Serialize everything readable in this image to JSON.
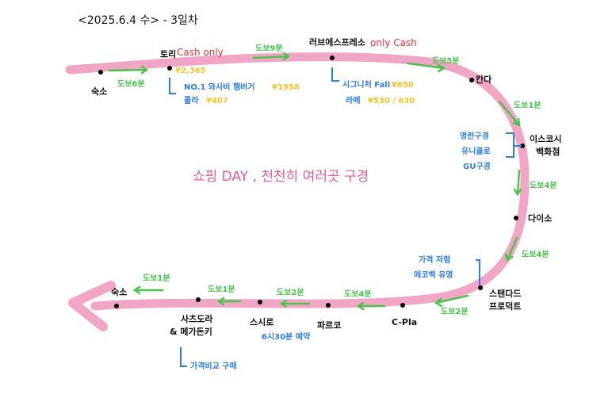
{
  "title": "<2025.6.4 수> - 3일차",
  "theme": "쇼핑 DAY , 천천히 여러곳 구경",
  "colors": {
    "route": "#f0a6c4",
    "walk": "#4cc24f",
    "note": "#2f7de1",
    "price": "#f4c22b",
    "warn": "#e8313c"
  },
  "stops": {
    "s1": "숙소",
    "s2": "토리",
    "s3": "러브에스프레소",
    "s4": "칸다",
    "s5a": "이스코시",
    "s5b": "백화점",
    "s6": "다이소",
    "s7a": "스탠다드",
    "s7b": "프로덕트",
    "s8": "C-Pla",
    "s9": "파르코",
    "s10": "스시로",
    "s11a": "사츠도라",
    "s11b": "& 메가돈키",
    "s12": "숙소"
  },
  "walks": [
    "도보6분",
    "도보9분",
    "도보5분",
    "도보1분",
    "도보4분",
    "도보4분",
    "도보2분",
    "도보4분",
    "도보2분",
    "도보1분",
    "도보1분"
  ],
  "notes": {
    "tori_cash": "Cash only",
    "tori_price": "¥2,365",
    "tori_item1": "NO.1 와사비 햄버거",
    "tori_item1_price": "¥1958",
    "tori_item2": "콜라",
    "tori_item2_price": "¥407",
    "love_cash": "only Cash",
    "love_item1": "시그니처 Fall",
    "love_item1_price": "¥650",
    "love_item2": "라떼",
    "love_item2_price": "¥530 / 630",
    "isekoshi1": "명란구경",
    "isekoshi2": "유니클로",
    "isekoshi3": "GU구경",
    "standard1": "가격 저렴",
    "standard2": "에코백 유명",
    "sushiro": "6시30분 예약",
    "satsudora": "가격비교 구매"
  }
}
